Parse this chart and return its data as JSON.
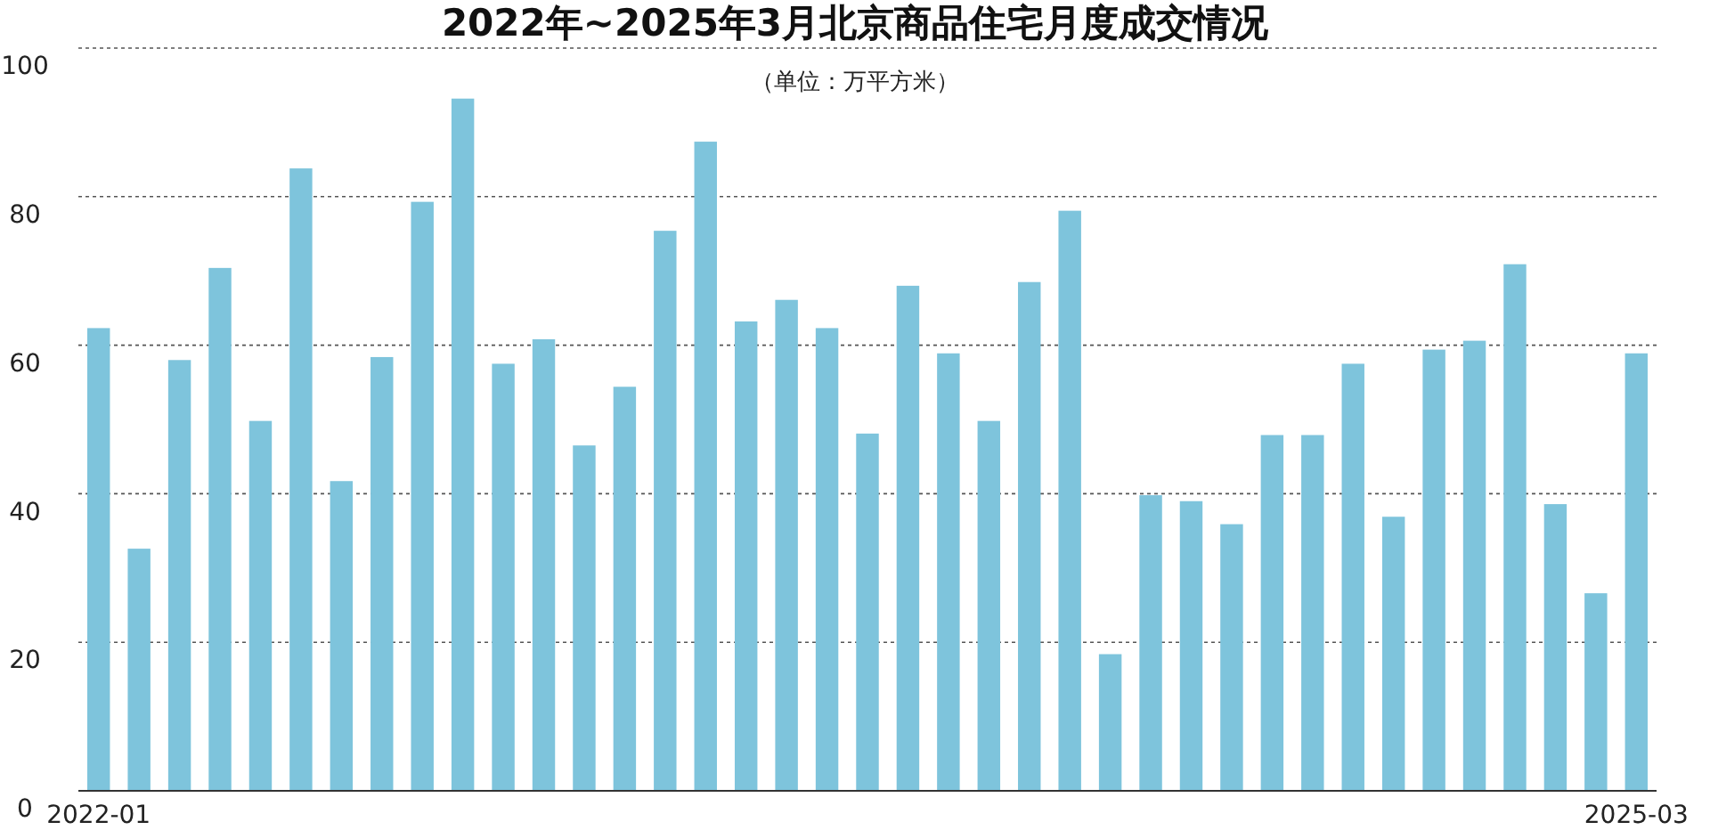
{
  "chart_data": {
    "type": "bar",
    "title": "2022年~2025年3月北京商品住宅月度成交情况",
    "subtitle": "（单位：万平方米）",
    "categories": [
      "2022-01",
      null,
      null,
      null,
      null,
      null,
      null,
      null,
      null,
      null,
      null,
      null,
      null,
      null,
      null,
      null,
      null,
      null,
      null,
      null,
      null,
      null,
      null,
      null,
      null,
      null,
      null,
      null,
      null,
      null,
      null,
      null,
      null,
      null,
      null,
      null,
      null,
      null,
      "2025-03"
    ],
    "values": [
      62.3,
      32.6,
      58,
      70.4,
      49.8,
      83.8,
      41.7,
      58.4,
      79.3,
      93.2,
      57.5,
      60.8,
      46.5,
      54.4,
      75.4,
      87.4,
      63.2,
      66.1,
      62.3,
      48.1,
      68,
      58.9,
      49.8,
      68.5,
      78.1,
      18.4,
      39.8,
      39,
      35.9,
      47.9,
      47.9,
      57.5,
      36.9,
      59.4,
      60.6,
      70.9,
      38.6,
      26.6,
      58.9
    ],
    "color": "#7ec4dc",
    "ylim": [
      0,
      100
    ],
    "yticks": [
      0,
      20,
      40,
      60,
      80,
      100
    ],
    "grid": "y"
  }
}
